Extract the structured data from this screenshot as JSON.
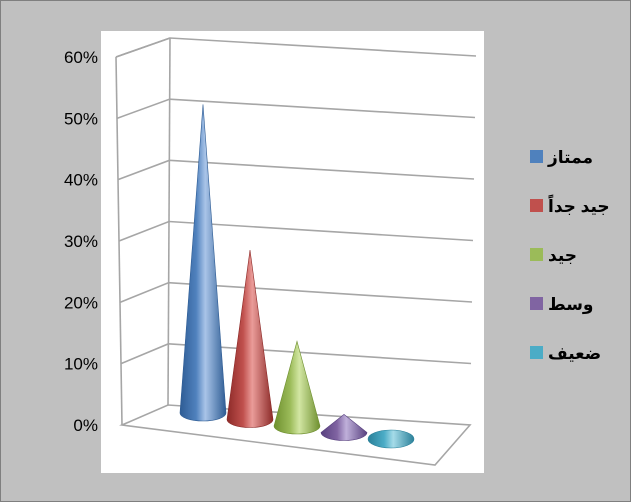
{
  "chart_data": {
    "type": "bar",
    "bar_shape": "cone",
    "view": "3d",
    "categories": [
      "ممتاز",
      "جيد جداً",
      "جيد",
      "وسط",
      "ضعيف"
    ],
    "values": [
      51,
      28,
      14,
      3,
      0
    ],
    "ylim": [
      0,
      60
    ],
    "y_ticks": [
      "0%",
      "10%",
      "20%",
      "30%",
      "40%",
      "50%",
      "60%"
    ],
    "grid": true,
    "legend_position": "right",
    "colors": [
      "#4f81bd",
      "#c0504d",
      "#9bbb59",
      "#8064a2",
      "#4bacc6"
    ],
    "dark_colors": [
      "#2e5c94",
      "#8c2a28",
      "#6e8f2e",
      "#58407f",
      "#2a8099"
    ],
    "light_colors": [
      "#a9c4e8",
      "#ea9c99",
      "#d2e6a3",
      "#bfb0da",
      "#a5dbe8"
    ]
  }
}
